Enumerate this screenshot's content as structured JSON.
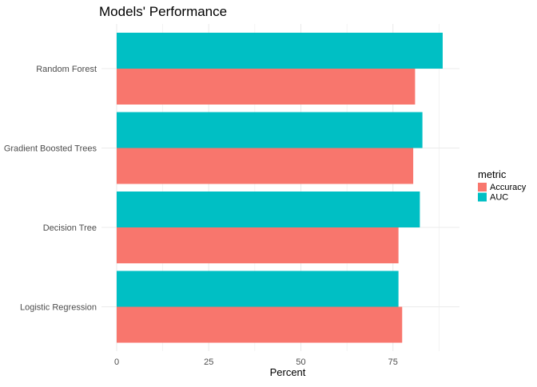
{
  "chart_data": {
    "type": "bar",
    "orientation": "horizontal",
    "title": "Models' Performance",
    "xlabel": "Percent",
    "ylabel": "",
    "xlim": [
      0,
      92.5
    ],
    "x_ticks": [
      0,
      25,
      50,
      75
    ],
    "grid": true,
    "legend_position": "right",
    "legend_title": "metric",
    "categories": [
      "Random Forest",
      "Gradient Boosted Trees",
      "Decision Tree",
      "Logistic Regression"
    ],
    "series": [
      {
        "name": "Accuracy",
        "color": "#F8766D",
        "values": [
          81.0,
          80.5,
          76.5,
          77.5
        ]
      },
      {
        "name": "AUC",
        "color": "#00BFC4",
        "values": [
          88.5,
          83.0,
          82.3,
          76.5
        ]
      }
    ]
  }
}
